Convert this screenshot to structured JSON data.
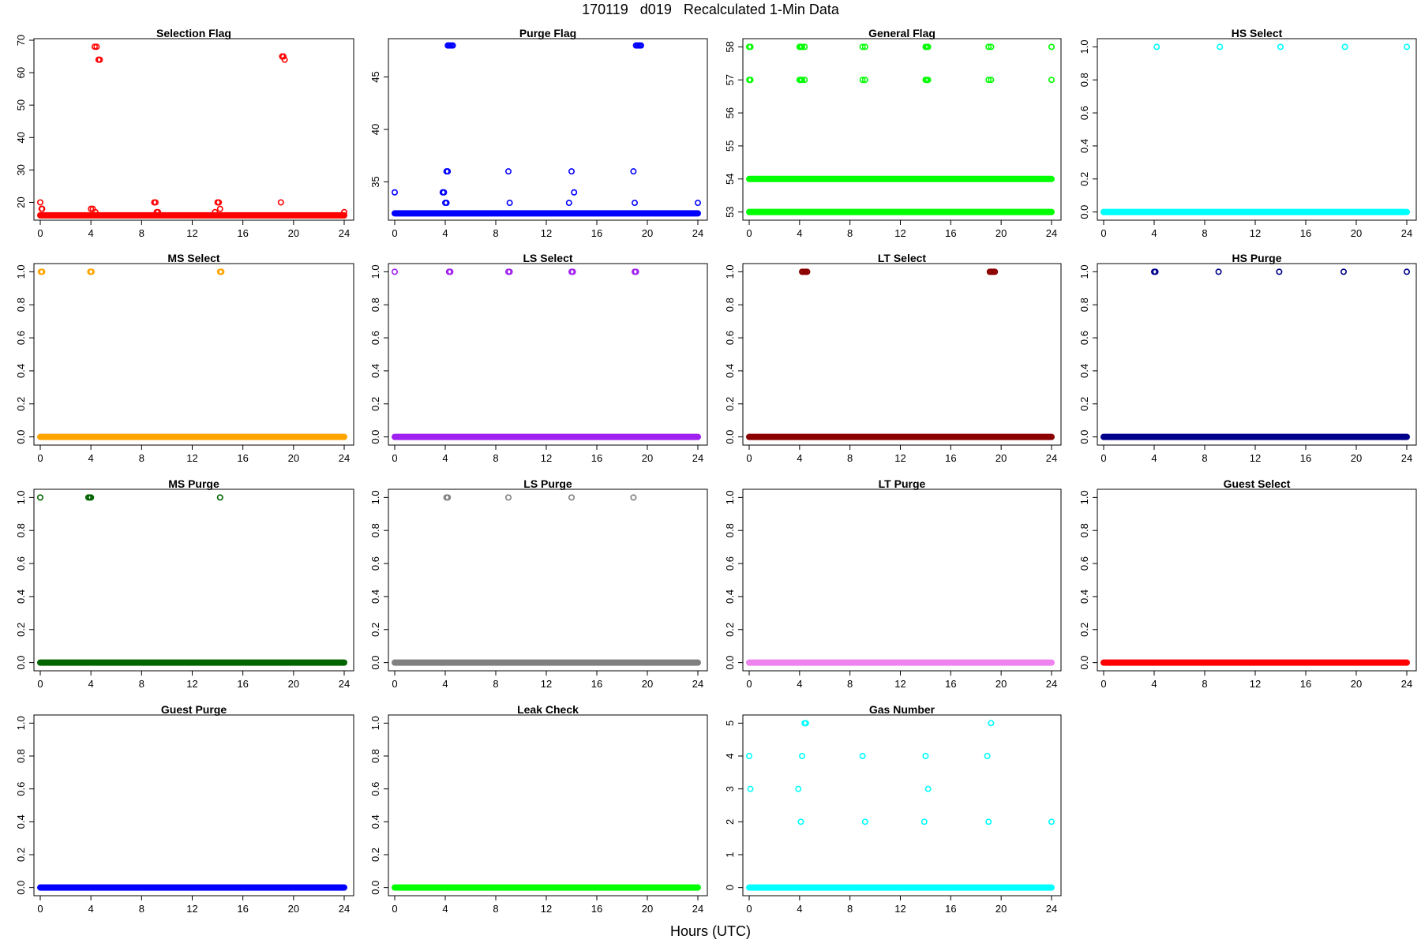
{
  "page": {
    "title": "170119   d019   Recalculated 1-Min Data",
    "x_axis_label": "Hours (UTC)"
  },
  "chart_data": [
    {
      "type": "scatter",
      "title": "Selection Flag",
      "color": "#ff0000",
      "xlim": [
        0,
        24
      ],
      "ylim": [
        15,
        70
      ],
      "x_ticks": [
        0,
        4,
        8,
        12,
        16,
        20,
        24
      ],
      "y_ticks": [
        20,
        30,
        40,
        50,
        60,
        70
      ],
      "baseline": {
        "value": 16,
        "from": 0,
        "to": 24
      },
      "points": [
        [
          0,
          20
        ],
        [
          0.1,
          18
        ],
        [
          0.15,
          18
        ],
        [
          4,
          18
        ],
        [
          4.15,
          18
        ],
        [
          4.3,
          68
        ],
        [
          4.45,
          68
        ],
        [
          4.35,
          17
        ],
        [
          4.6,
          64
        ],
        [
          4.7,
          64
        ],
        [
          9,
          20
        ],
        [
          9.1,
          20
        ],
        [
          9.2,
          17
        ],
        [
          9.3,
          17
        ],
        [
          13.8,
          17
        ],
        [
          14,
          20
        ],
        [
          14.1,
          20
        ],
        [
          14.2,
          18
        ],
        [
          19,
          20
        ],
        [
          19.1,
          65
        ],
        [
          19.2,
          65
        ],
        [
          19.3,
          64
        ],
        [
          24,
          17
        ]
      ]
    },
    {
      "type": "scatter",
      "title": "Purge Flag",
      "color": "#0000ff",
      "xlim": [
        0,
        24
      ],
      "ylim": [
        31.5,
        48.5
      ],
      "x_ticks": [
        0,
        4,
        8,
        12,
        16,
        20,
        24
      ],
      "y_ticks": [
        35,
        40,
        45
      ],
      "baseline": {
        "value": 32,
        "from": 0,
        "to": 24
      },
      "points": [
        [
          0,
          34
        ],
        [
          3.8,
          34
        ],
        [
          3.9,
          34
        ],
        [
          4,
          33
        ],
        [
          4.1,
          33
        ],
        [
          4.1,
          36
        ],
        [
          4.2,
          36
        ],
        [
          4.2,
          48
        ],
        [
          4.3,
          48
        ],
        [
          4.4,
          48
        ],
        [
          4.5,
          48
        ],
        [
          4.6,
          48
        ],
        [
          9,
          36
        ],
        [
          9.1,
          33
        ],
        [
          13.8,
          33
        ],
        [
          14,
          36
        ],
        [
          14.2,
          34
        ],
        [
          18.9,
          36
        ],
        [
          19,
          33
        ],
        [
          19.1,
          48
        ],
        [
          19.2,
          48
        ],
        [
          19.3,
          48
        ],
        [
          19.4,
          48
        ],
        [
          19.5,
          48
        ],
        [
          24,
          33
        ]
      ]
    },
    {
      "type": "scatter",
      "title": "General Flag",
      "color": "#00ff00",
      "xlim": [
        0,
        24
      ],
      "ylim": [
        52.8,
        58.2
      ],
      "x_ticks": [
        0,
        4,
        8,
        12,
        16,
        20,
        24
      ],
      "y_ticks": [
        53,
        54,
        55,
        56,
        57,
        58
      ],
      "baseline": {
        "value": 53,
        "from": 0,
        "to": 24
      },
      "baseline2": {
        "value": 54,
        "from": 0,
        "to": 24
      },
      "points": [
        [
          0,
          58
        ],
        [
          0.1,
          58
        ],
        [
          0,
          57
        ],
        [
          0.1,
          57
        ],
        [
          4,
          58
        ],
        [
          4.1,
          58
        ],
        [
          4.2,
          58
        ],
        [
          4.4,
          58
        ],
        [
          4,
          57
        ],
        [
          4.1,
          57
        ],
        [
          4.2,
          57
        ],
        [
          4.4,
          57
        ],
        [
          9,
          58
        ],
        [
          9.2,
          58
        ],
        [
          9,
          57
        ],
        [
          9.2,
          57
        ],
        [
          14,
          58
        ],
        [
          14.1,
          58
        ],
        [
          14.2,
          58
        ],
        [
          14,
          57
        ],
        [
          14.1,
          57
        ],
        [
          14.2,
          57
        ],
        [
          19,
          58
        ],
        [
          19.2,
          58
        ],
        [
          19,
          57
        ],
        [
          19.2,
          57
        ],
        [
          24,
          58
        ],
        [
          24,
          57
        ]
      ]
    },
    {
      "type": "scatter",
      "title": "HS Select",
      "color": "#00ffff",
      "xlim": [
        0,
        24
      ],
      "ylim": [
        -0.04,
        1.04
      ],
      "x_ticks": [
        0,
        4,
        8,
        12,
        16,
        20,
        24
      ],
      "y_ticks": [
        0.0,
        0.2,
        0.4,
        0.6,
        0.8,
        1.0
      ],
      "baseline": {
        "value": 0,
        "from": 0,
        "to": 24
      },
      "points": [
        [
          4.2,
          1
        ],
        [
          9.2,
          1
        ],
        [
          14,
          1
        ],
        [
          19.1,
          1
        ],
        [
          24,
          1
        ]
      ]
    },
    {
      "type": "scatter",
      "title": "MS Select",
      "color": "#ffa500",
      "xlim": [
        0,
        24
      ],
      "ylim": [
        -0.04,
        1.04
      ],
      "x_ticks": [
        0,
        4,
        8,
        12,
        16,
        20,
        24
      ],
      "y_ticks": [
        0.0,
        0.2,
        0.4,
        0.6,
        0.8,
        1.0
      ],
      "baseline": {
        "value": 0,
        "from": 0,
        "to": 24
      },
      "points": [
        [
          0.05,
          1
        ],
        [
          0.15,
          1
        ],
        [
          3.95,
          1
        ],
        [
          4.05,
          1
        ],
        [
          14.2,
          1
        ],
        [
          14.3,
          1
        ]
      ]
    },
    {
      "type": "scatter",
      "title": "LS Select",
      "color": "#a020f0",
      "xlim": [
        0,
        24
      ],
      "ylim": [
        -0.04,
        1.04
      ],
      "x_ticks": [
        0,
        4,
        8,
        12,
        16,
        20,
        24
      ],
      "y_ticks": [
        0.0,
        0.2,
        0.4,
        0.6,
        0.8,
        1.0
      ],
      "baseline": {
        "value": 0,
        "from": 0,
        "to": 24
      },
      "points": [
        [
          0,
          1
        ],
        [
          4.3,
          1
        ],
        [
          4.4,
          1
        ],
        [
          9,
          1
        ],
        [
          9.1,
          1
        ],
        [
          14,
          1
        ],
        [
          14.1,
          1
        ],
        [
          19,
          1
        ],
        [
          19.1,
          1
        ]
      ]
    },
    {
      "type": "scatter",
      "title": "LT Select",
      "color": "#8b0000",
      "xlim": [
        0,
        24
      ],
      "ylim": [
        -0.04,
        1.04
      ],
      "x_ticks": [
        0,
        4,
        8,
        12,
        16,
        20,
        24
      ],
      "y_ticks": [
        0.0,
        0.2,
        0.4,
        0.6,
        0.8,
        1.0
      ],
      "baseline": {
        "value": 0,
        "from": 0,
        "to": 24
      },
      "points": [
        [
          4.2,
          1
        ],
        [
          4.3,
          1
        ],
        [
          4.4,
          1
        ],
        [
          4.5,
          1
        ],
        [
          4.6,
          1
        ],
        [
          19.1,
          1
        ],
        [
          19.2,
          1
        ],
        [
          19.3,
          1
        ],
        [
          19.4,
          1
        ],
        [
          19.5,
          1
        ]
      ]
    },
    {
      "type": "scatter",
      "title": "HS Purge",
      "color": "#00008b",
      "xlim": [
        0,
        24
      ],
      "ylim": [
        -0.04,
        1.04
      ],
      "x_ticks": [
        0,
        4,
        8,
        12,
        16,
        20,
        24
      ],
      "y_ticks": [
        0.0,
        0.2,
        0.4,
        0.6,
        0.8,
        1.0
      ],
      "baseline": {
        "value": 0,
        "from": 0,
        "to": 24
      },
      "points": [
        [
          4,
          1
        ],
        [
          4.1,
          1
        ],
        [
          9.1,
          1
        ],
        [
          13.9,
          1
        ],
        [
          19,
          1
        ],
        [
          24,
          1
        ]
      ]
    },
    {
      "type": "scatter",
      "title": "MS Purge",
      "color": "#006400",
      "xlim": [
        0,
        24
      ],
      "ylim": [
        -0.04,
        1.04
      ],
      "x_ticks": [
        0,
        4,
        8,
        12,
        16,
        20,
        24
      ],
      "y_ticks": [
        0.0,
        0.2,
        0.4,
        0.6,
        0.8,
        1.0
      ],
      "baseline": {
        "value": 0,
        "from": 0,
        "to": 24
      },
      "points": [
        [
          0,
          1
        ],
        [
          3.8,
          1
        ],
        [
          3.9,
          1
        ],
        [
          4,
          1
        ],
        [
          14.2,
          1
        ]
      ]
    },
    {
      "type": "scatter",
      "title": "LS Purge",
      "color": "#808080",
      "xlim": [
        0,
        24
      ],
      "ylim": [
        -0.04,
        1.04
      ],
      "x_ticks": [
        0,
        4,
        8,
        12,
        16,
        20,
        24
      ],
      "y_ticks": [
        0.0,
        0.2,
        0.4,
        0.6,
        0.8,
        1.0
      ],
      "baseline": {
        "value": 0,
        "from": 0,
        "to": 24
      },
      "points": [
        [
          4.1,
          1
        ],
        [
          4.2,
          1
        ],
        [
          9,
          1
        ],
        [
          14,
          1
        ],
        [
          18.9,
          1
        ]
      ]
    },
    {
      "type": "scatter",
      "title": "LT Purge",
      "color": "#ee82ee",
      "xlim": [
        0,
        24
      ],
      "ylim": [
        -0.04,
        1.04
      ],
      "x_ticks": [
        0,
        4,
        8,
        12,
        16,
        20,
        24
      ],
      "y_ticks": [
        0.0,
        0.2,
        0.4,
        0.6,
        0.8,
        1.0
      ],
      "baseline": {
        "value": 0,
        "from": 0,
        "to": 24
      },
      "points": []
    },
    {
      "type": "scatter",
      "title": "Guest Select",
      "color": "#ff0000",
      "xlim": [
        0,
        24
      ],
      "ylim": [
        -0.04,
        1.04
      ],
      "x_ticks": [
        0,
        4,
        8,
        12,
        16,
        20,
        24
      ],
      "y_ticks": [
        0.0,
        0.2,
        0.4,
        0.6,
        0.8,
        1.0
      ],
      "baseline": {
        "value": 0,
        "from": 0,
        "to": 24
      },
      "points": []
    },
    {
      "type": "scatter",
      "title": "Guest Purge",
      "color": "#0000ff",
      "xlim": [
        0,
        24
      ],
      "ylim": [
        -0.04,
        1.04
      ],
      "x_ticks": [
        0,
        4,
        8,
        12,
        16,
        20,
        24
      ],
      "y_ticks": [
        0.0,
        0.2,
        0.4,
        0.6,
        0.8,
        1.0
      ],
      "baseline": {
        "value": 0,
        "from": 0,
        "to": 24
      },
      "points": []
    },
    {
      "type": "scatter",
      "title": "Leak Check",
      "color": "#00ff00",
      "xlim": [
        0,
        24
      ],
      "ylim": [
        -0.04,
        1.04
      ],
      "x_ticks": [
        0,
        4,
        8,
        12,
        16,
        20,
        24
      ],
      "y_ticks": [
        0.0,
        0.2,
        0.4,
        0.6,
        0.8,
        1.0
      ],
      "baseline": {
        "value": 0,
        "from": 0,
        "to": 24
      },
      "points": []
    },
    {
      "type": "scatter",
      "title": "Gas Number",
      "color": "#00ffff",
      "xlim": [
        0,
        24
      ],
      "ylim": [
        -0.2,
        5.2
      ],
      "x_ticks": [
        0,
        4,
        8,
        12,
        16,
        20,
        24
      ],
      "y_ticks": [
        0,
        1,
        2,
        3,
        4,
        5
      ],
      "baseline": {
        "value": 0,
        "from": 0,
        "to": 24
      },
      "points": [
        [
          0,
          4
        ],
        [
          0.1,
          3
        ],
        [
          3.9,
          3
        ],
        [
          4.1,
          2
        ],
        [
          4.2,
          4
        ],
        [
          4.4,
          5
        ],
        [
          4.5,
          5
        ],
        [
          9,
          4
        ],
        [
          9.2,
          2
        ],
        [
          13.9,
          2
        ],
        [
          14,
          4
        ],
        [
          14.2,
          3
        ],
        [
          18.9,
          4
        ],
        [
          19,
          2
        ],
        [
          19.2,
          5
        ],
        [
          24,
          2
        ]
      ]
    }
  ]
}
